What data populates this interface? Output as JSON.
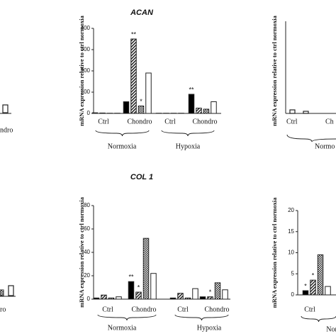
{
  "fragments": [
    "ndro",
    "ro",
    "mRNA expression relative to ctrl normoxia",
    "Ctrl",
    "Ch",
    "Normo"
  ],
  "chart_data": [
    {
      "type": "bar",
      "title": "ACAN",
      "y_label": "mRNA expression relative to ctrl normoxia",
      "categories": [
        "Ctrl",
        "Chondro",
        "Ctrl",
        "Chondro"
      ],
      "groups": [
        "Normoxia",
        "Hypoxia"
      ],
      "series": [
        {
          "color": "#000000",
          "pattern": "solid",
          "values": [
            3,
            55,
            1,
            90
          ]
        },
        {
          "color": "#222222",
          "pattern": "diagonal",
          "values": [
            2,
            350,
            1,
            25
          ]
        },
        {
          "color": "#222222",
          "pattern": "checker",
          "values": [
            1,
            35,
            1,
            20
          ]
        },
        {
          "color": "#ffffff",
          "pattern": "solid",
          "values": [
            1,
            190,
            1,
            55
          ]
        }
      ],
      "annotations": [
        "**",
        "*",
        "**"
      ],
      "ylim": [
        0,
        400
      ],
      "yticks": [
        0,
        100,
        200,
        300,
        400
      ]
    },
    {
      "type": "bar",
      "title": "COL 1",
      "y_label": "mRNA expression relative to ctrl normoxia",
      "categories": [
        "Ctrl",
        "Chondro",
        "Ctrl",
        "Chondro"
      ],
      "groups": [
        "Normoxia",
        "Hypoxia"
      ],
      "series": [
        {
          "color": "#000000",
          "pattern": "solid",
          "values": [
            1,
            15,
            1,
            2
          ]
        },
        {
          "color": "#222222",
          "pattern": "diagonal",
          "values": [
            3.5,
            6,
            5,
            2
          ]
        },
        {
          "color": "#222222",
          "pattern": "checker",
          "values": [
            1,
            52,
            1,
            14
          ]
        },
        {
          "color": "#ffffff",
          "pattern": "solid",
          "values": [
            2,
            22,
            9,
            8
          ]
        }
      ],
      "annotations": [
        "**",
        "*",
        "*"
      ],
      "ylim": [
        0,
        80
      ],
      "yticks": [
        0,
        20,
        40,
        60,
        80
      ]
    },
    {
      "type": "bar",
      "y_label": "mRNA expression relative to ctrl normoxia",
      "categories": [
        "Ctrl"
      ],
      "groups": [
        "Nor"
      ],
      "series": [
        {
          "color": "#000000",
          "pattern": "solid",
          "values": [
            1
          ]
        },
        {
          "color": "#222222",
          "pattern": "diagonal",
          "values": [
            3.5
          ]
        },
        {
          "color": "#222222",
          "pattern": "checker",
          "values": [
            9.5
          ]
        },
        {
          "color": "#ffffff",
          "pattern": "solid",
          "values": [
            2
          ]
        }
      ],
      "annotations": [
        "*",
        "*"
      ],
      "ylim": [
        0,
        20
      ],
      "yticks": [
        0,
        5,
        10,
        15,
        20
      ]
    }
  ]
}
